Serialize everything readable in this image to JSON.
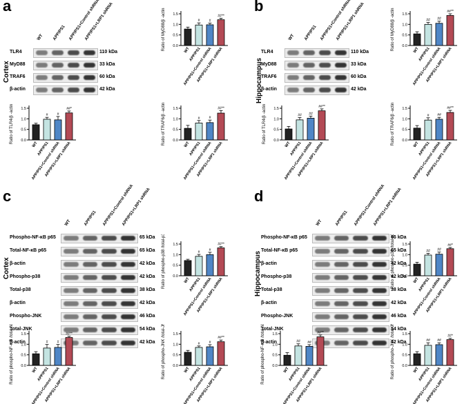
{
  "panels": {
    "a": {
      "letter": "a",
      "region": "Cortex"
    },
    "b": {
      "letter": "b",
      "region": "Hippocampus"
    },
    "c": {
      "letter": "c",
      "region": "Cortex"
    },
    "d": {
      "letter": "d",
      "region": "Hippocampus"
    }
  },
  "lanes": [
    "WT",
    "APP/PS1",
    "APP/PS1+Control shRNA",
    "APP/PS1+LRP1 shRNA"
  ],
  "blots_ab": [
    {
      "label": "TLR4",
      "kda": "110 kDa"
    },
    {
      "label": "MyD88",
      "kda": "33 kDa"
    },
    {
      "label": "TRAF6",
      "kda": "60 kDa"
    },
    {
      "label": "β-actin",
      "kda": "42 kDa"
    }
  ],
  "blots_cd": [
    {
      "label": "Phospho-NF-κB p65",
      "kda": "65 kDa"
    },
    {
      "label": "Total-NF-κB p65",
      "kda": "65 kDa"
    },
    {
      "label": "β-actin",
      "kda": "42 kDa"
    },
    {
      "label": "Phospho-p38",
      "kda": "42 kDa"
    },
    {
      "label": "Total-p38",
      "kda": "38 kDa"
    },
    {
      "label": "β-actin",
      "kda": "42 kDa"
    },
    {
      "label": "Phospho-JNK",
      "kda": "46 kDa"
    },
    {
      "label": "Total-JNK",
      "kda": "54 kDa"
    },
    {
      "label": "β-actin",
      "kda": "42 kDa"
    }
  ],
  "colors": [
    "#222222",
    "#c4e4e2",
    "#4f86c6",
    "#b34a55"
  ],
  "chart_data": [
    {
      "id": "a-myd88",
      "type": "bar",
      "ylabel": "Ratio of MyD88/β -actin",
      "ylim": [
        0,
        1.5
      ],
      "ticks": [
        "0.0",
        "0.5",
        "1.0",
        "1.5"
      ],
      "values": [
        0.78,
        0.97,
        0.98,
        1.22
      ],
      "errors": [
        0.09,
        0.1,
        0.08,
        0.07
      ],
      "marks": [
        "",
        "#",
        "#",
        "##**"
      ]
    },
    {
      "id": "a-tlr4",
      "type": "bar",
      "ylabel": "Ratio of TLR4/β -actin",
      "ylim": [
        0,
        1.5
      ],
      "ticks": [
        "0.0",
        "0.5",
        "1.0",
        "1.5"
      ],
      "values": [
        0.72,
        0.98,
        0.95,
        1.28
      ],
      "errors": [
        0.07,
        0.09,
        0.16,
        0.09
      ],
      "marks": [
        "",
        "#",
        "#",
        "##*"
      ]
    },
    {
      "id": "a-traf6",
      "type": "bar",
      "ylabel": "Ratio of TRAF6/β -actin",
      "ylim": [
        0,
        1.5
      ],
      "ticks": [
        "0.0",
        "0.5",
        "1.0",
        "1.5"
      ],
      "values": [
        0.55,
        0.8,
        0.82,
        1.27
      ],
      "errors": [
        0.14,
        0.12,
        0.12,
        0.12
      ],
      "marks": [
        "",
        "#",
        "#",
        "##**"
      ]
    },
    {
      "id": "b-myd88",
      "type": "bar",
      "ylabel": "Ratio of MyD88/β -actin",
      "ylim": [
        0,
        1.5
      ],
      "ticks": [
        "0.0",
        "0.5",
        "1.0",
        "1.5"
      ],
      "values": [
        0.55,
        1.0,
        1.05,
        1.42
      ],
      "errors": [
        0.1,
        0.09,
        0.1,
        0.08
      ],
      "marks": [
        "",
        "##",
        "##",
        "##**"
      ]
    },
    {
      "id": "b-tlr4",
      "type": "bar",
      "ylabel": "Ratio of TLR4/β -actin",
      "ylim": [
        0,
        1.5
      ],
      "ticks": [
        "0.0",
        "0.5",
        "1.0",
        "1.5"
      ],
      "values": [
        0.52,
        0.95,
        1.03,
        1.38
      ],
      "errors": [
        0.12,
        0.11,
        0.1,
        0.09
      ],
      "marks": [
        "",
        "##",
        "##",
        "##**"
      ]
    },
    {
      "id": "b-traf6",
      "type": "bar",
      "ylabel": "Ratio of TRAF6/β -actin",
      "ylim": [
        0,
        1.5
      ],
      "ticks": [
        "0.0",
        "0.5",
        "1.0",
        "1.5"
      ],
      "values": [
        0.56,
        0.94,
        0.98,
        1.3
      ],
      "errors": [
        0.12,
        0.11,
        0.09,
        0.1
      ],
      "marks": [
        "",
        "#",
        "##",
        "##**"
      ]
    },
    {
      "id": "c-p38",
      "type": "bar",
      "ylabel": "Ratio of phospho-p38 /total-p38",
      "ylim": [
        0,
        1.5
      ],
      "ticks": [
        "0.0",
        "0.5",
        "1.0",
        "1.5"
      ],
      "values": [
        0.72,
        0.92,
        1.0,
        1.32
      ],
      "errors": [
        0.06,
        0.09,
        0.11,
        0.06
      ],
      "marks": [
        "",
        "#",
        "#",
        "##**"
      ]
    },
    {
      "id": "c-nfkb",
      "type": "bar",
      "ylabel": "Ratio of phospho-NF-κ B /total-NF-κ B",
      "ylim": [
        0,
        1.5
      ],
      "ticks": [
        "0.0",
        "0.5",
        "1.0",
        "1.5"
      ],
      "values": [
        0.55,
        0.82,
        0.85,
        1.32
      ],
      "errors": [
        0.1,
        0.17,
        0.14,
        0.06
      ],
      "marks": [
        "",
        "#",
        "#",
        "##**"
      ]
    },
    {
      "id": "c-jnk",
      "type": "bar",
      "ylabel": "Ratio of phospho-JNK /total-JNK",
      "ylim": [
        0,
        1.5
      ],
      "ticks": [
        "0.0",
        "0.5",
        "1.0",
        "1.5"
      ],
      "values": [
        0.62,
        0.85,
        0.88,
        1.12
      ],
      "errors": [
        0.09,
        0.07,
        0.1,
        0.08
      ],
      "marks": [
        "",
        "#",
        "#",
        "##**"
      ]
    },
    {
      "id": "d-p38",
      "type": "bar",
      "ylabel": "Ratio of phospho-p38 /total-p38",
      "ylim": [
        0,
        1.5
      ],
      "ticks": [
        "0.0",
        "0.5",
        "1.0",
        "1.5"
      ],
      "values": [
        0.55,
        0.98,
        1.02,
        1.28
      ],
      "errors": [
        0.09,
        0.08,
        0.1,
        0.06
      ],
      "marks": [
        "",
        "##",
        "##",
        "##*"
      ]
    },
    {
      "id": "d-nfkb",
      "type": "bar",
      "ylabel": "Ratio of phospho-NF-κ B /total-NF-κ B",
      "ylim": [
        0,
        1.5
      ],
      "ticks": [
        "0.0",
        "0.5",
        "1.0",
        "1.5"
      ],
      "values": [
        0.48,
        0.92,
        0.9,
        1.35
      ],
      "errors": [
        0.12,
        0.1,
        0.08,
        0.09
      ],
      "marks": [
        "",
        "##",
        "##",
        "##**"
      ]
    },
    {
      "id": "d-jnk",
      "type": "bar",
      "ylabel": "Ratio of phospho-JNK /total-JNK",
      "ylim": [
        0,
        1.5
      ],
      "ticks": [
        "0.0",
        "0.5",
        "1.0",
        "1.5"
      ],
      "values": [
        0.55,
        0.95,
        0.98,
        1.22
      ],
      "errors": [
        0.1,
        0.12,
        0.09,
        0.06
      ],
      "marks": [
        "",
        "##",
        "##",
        "##*"
      ]
    }
  ]
}
